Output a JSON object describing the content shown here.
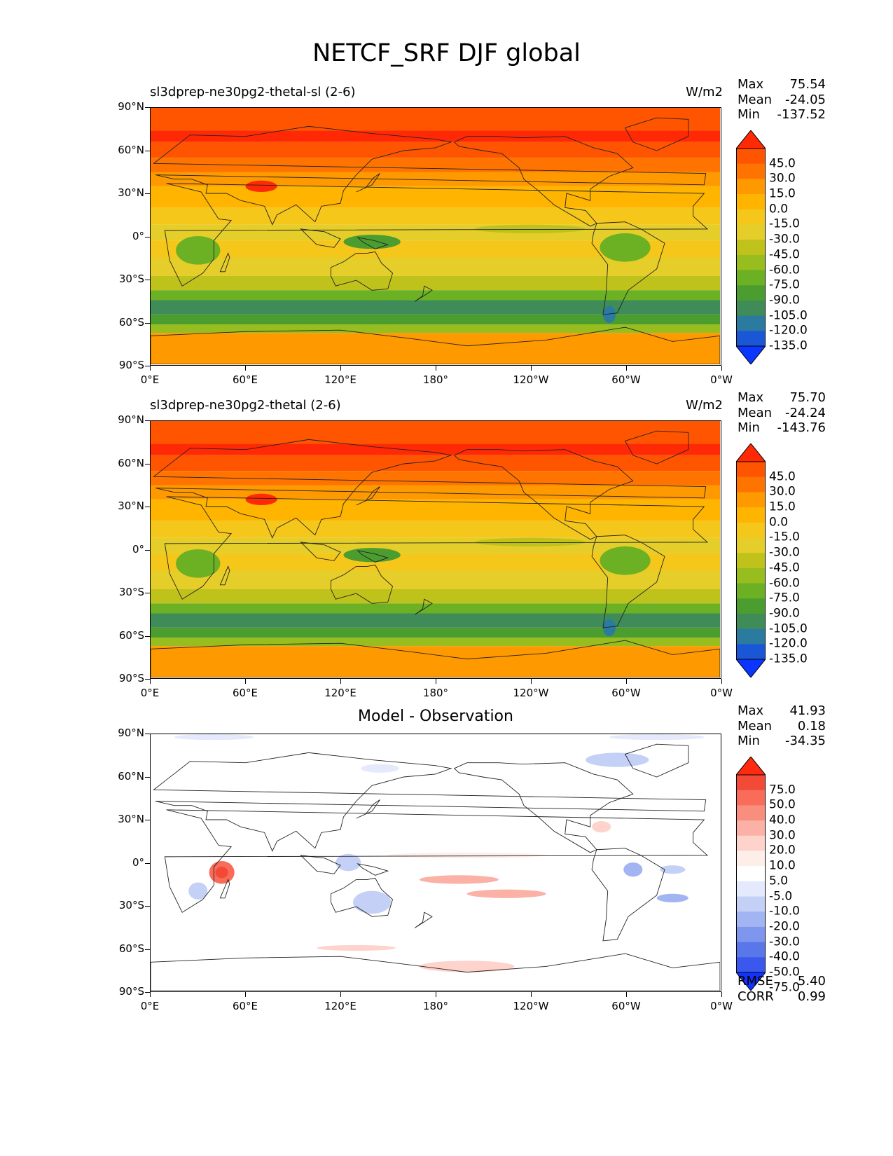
{
  "figure_title": "NETCF_SRF DJF global",
  "x_ticks": [
    "0°E",
    "60°E",
    "120°E",
    "180°",
    "120°W",
    "60°W",
    "0°W"
  ],
  "y_ticks": [
    "90°N",
    "60°N",
    "30°N",
    "0°",
    "30°S",
    "60°S",
    "90°S"
  ],
  "panels": [
    {
      "title": "sl3dprep-ne30pg2-thetal-sl (2-6)",
      "units": "W/m2",
      "stats": {
        "max_label": "Max",
        "max": "75.54",
        "mean_label": "Mean",
        "mean": "-24.05",
        "min_label": "Min",
        "min": "-137.52"
      },
      "colorbar_levels": [
        "45.0",
        "30.0",
        "15.0",
        "0.0",
        "-15.0",
        "-30.0",
        "-45.0",
        "-60.0",
        "-75.0",
        "-90.0",
        "-105.0",
        "-120.0",
        "-135.0"
      ],
      "colorbar_colors": [
        "#ff2a05",
        "#ff5500",
        "#ff7400",
        "#ff9900",
        "#ffb400",
        "#f5c71a",
        "#e5cd2a",
        "#c0c21c",
        "#97bd1e",
        "#6cb023",
        "#4c9d2f",
        "#3f8c59",
        "#2b7aa0",
        "#1a57d6",
        "#0a36ff"
      ],
      "colormap": "model"
    },
    {
      "title": "sl3dprep-ne30pg2-thetal (2-6)",
      "units": "W/m2",
      "stats": {
        "max_label": "Max",
        "max": "75.70",
        "mean_label": "Mean",
        "mean": "-24.24",
        "min_label": "Min",
        "min": "-143.76"
      },
      "colorbar_levels": [
        "45.0",
        "30.0",
        "15.0",
        "0.0",
        "-15.0",
        "-30.0",
        "-45.0",
        "-60.0",
        "-75.0",
        "-90.0",
        "-105.0",
        "-120.0",
        "-135.0"
      ],
      "colorbar_colors": [
        "#ff2a05",
        "#ff5500",
        "#ff7400",
        "#ff9900",
        "#ffb400",
        "#f5c71a",
        "#e5cd2a",
        "#c0c21c",
        "#97bd1e",
        "#6cb023",
        "#4c9d2f",
        "#3f8c59",
        "#2b7aa0",
        "#1a57d6",
        "#0a36ff"
      ],
      "colormap": "model"
    },
    {
      "title": "Model - Observation",
      "units": "",
      "stats": {
        "max_label": "Max",
        "max": "41.93",
        "mean_label": "Mean",
        "mean": "0.18",
        "min_label": "Min",
        "min": "-34.35"
      },
      "colorbar_levels": [
        "75.0",
        "50.0",
        "40.0",
        "30.0",
        "20.0",
        "10.0",
        "5.0",
        "-5.0",
        "-10.0",
        "-20.0",
        "-30.0",
        "-40.0",
        "-50.0",
        "-75.0"
      ],
      "colorbar_colors": [
        "#ff2a10",
        "#f24a37",
        "#f86c59",
        "#fa8e7e",
        "#fbb1a6",
        "#fdd3cc",
        "#feeeea",
        "#ffffff",
        "#e4e9fb",
        "#c5d0f7",
        "#a3b4f2",
        "#7f96ee",
        "#5a77ea",
        "#3a58ee",
        "#1233ff"
      ],
      "colormap": "diff",
      "extra_stats": {
        "rmse_label": "RMSE",
        "rmse": "5.40",
        "corr_label": "CORR",
        "corr": "0.99"
      }
    }
  ]
}
